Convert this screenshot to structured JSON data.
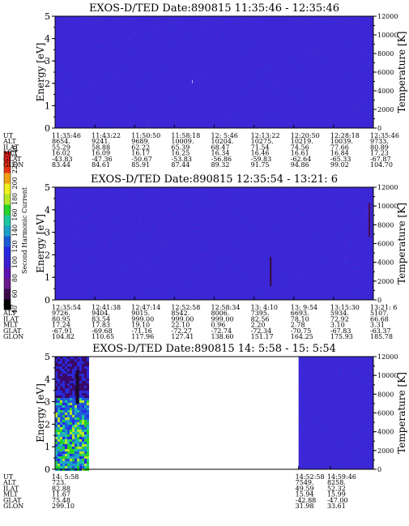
{
  "chart_data": {
    "type": "heatmap",
    "colorbar": {
      "label": "Second Harmonic Current",
      "ticks": [
        "40",
        "60",
        "80",
        "100",
        "120",
        "140",
        "160",
        "180",
        "200",
        "220",
        "240"
      ],
      "colors": [
        "#000000",
        "#3a0a4a",
        "#6a1a8a",
        "#5a14b0",
        "#3820d0",
        "#2828e0",
        "#1e5ad8",
        "#1ea0c8",
        "#1ec8a0",
        "#28d228",
        "#b4e628",
        "#f0f01e",
        "#f0a014",
        "#e63214",
        "#e61e1e"
      ]
    },
    "panels": [
      {
        "title": "EXOS-D/TED   Date:890815  11:35:46 - 12:35:46",
        "ylabel": "Energy [eV]",
        "y2label": "Temperature [K]",
        "ylim": [
          0,
          5
        ],
        "y2lim": [
          0,
          12000
        ],
        "yticks": [
          "0",
          "1",
          "2",
          "3",
          "4",
          "5"
        ],
        "y2ticks": [
          "0",
          "2000",
          "4000",
          "6000",
          "8000",
          "10000",
          "12000"
        ],
        "coverage": [
          [
            0,
            1
          ]
        ],
        "background": "#3b27d6",
        "ephemeris": {
          "labels": [
            "UT",
            "ALT",
            "ILAT",
            "MLT",
            "GLAT",
            "GLON"
          ],
          "columns": [
            {
              "pos": 0.0,
              "values": [
                "11:35:46",
                "8654.",
                "55.29",
                "16.02",
                "-43.83",
                "83.44"
              ]
            },
            {
              "pos": 0.1667,
              "values": [
                "11:43:22",
                "9241.",
                "58.88",
                "16.09",
                "-47.36",
                "84.61"
              ]
            },
            {
              "pos": 0.3333,
              "values": [
                "11:50:50",
                "9689.",
                "62.22",
                "16.17",
                "-50.67",
                "85.91"
              ]
            },
            {
              "pos": 0.5,
              "values": [
                "11:58:18",
                "10009.",
                "65.39",
                "16.25",
                "-53.83",
                "87.44"
              ]
            },
            {
              "pos": 0.6667,
              "values": [
                "12: 5:46",
                "10204.",
                "68.47",
                "16.34",
                "-56.86",
                "89.32"
              ]
            },
            {
              "pos": 0.8333,
              "values": [
                "12:13:22",
                "10275.",
                "71.54",
                "16.46",
                "-59.83",
                "91.75"
              ]
            },
            {
              "pos": 1.0,
              "values": [
                "12:20:50",
                "10219.",
                "74.56",
                "16.61",
                "-62.64",
                "94.86"
              ]
            },
            {
              "pos": 1.1667,
              "values": [
                "12:28:18",
                "10039.",
                "77.66",
                "16.84",
                "-65.33",
                "99.02"
              ]
            },
            {
              "pos": 1.3333,
              "values": [
                "12:35:46",
                "9733.",
                "80.89",
                "17.23",
                "-67.87",
                "104.70"
              ]
            }
          ]
        }
      },
      {
        "title": "EXOS-D/TED   Date:890815  12:35:54 - 13:21: 6",
        "ylabel": "Energy [eV]",
        "y2label": "Temperature [K]",
        "ylim": [
          0,
          5
        ],
        "y2lim": [
          0,
          12000
        ],
        "yticks": [
          "0",
          "1",
          "2",
          "3",
          "4",
          "5"
        ],
        "y2ticks": [
          "0",
          "2000",
          "4000",
          "6000",
          "8000",
          "10000",
          "12000"
        ],
        "coverage": [
          [
            0,
            1
          ]
        ],
        "background": "#3b27d6",
        "ephemeris": {
          "labels": [
            "UT",
            "ALT",
            "ILAT",
            "MLT",
            "GLAT",
            "GLON"
          ],
          "columns": [
            {
              "pos": 0.0,
              "values": [
                "12:35:54",
                "9726.",
                "80.95",
                "17.24",
                "-67.91",
                "104.82"
              ]
            },
            {
              "pos": 0.1667,
              "values": [
                "12:41:38",
                "9404.",
                "83.54",
                "17.83",
                "-69.68",
                "110.65"
              ]
            },
            {
              "pos": 0.3333,
              "values": [
                "12:47:14",
                "9015.",
                "999.00",
                "19.10",
                "-71.16",
                "117.96"
              ]
            },
            {
              "pos": 0.5,
              "values": [
                "12:52:58",
                "8542.",
                "999.00",
                "22.10",
                "-72.27",
                "127.41"
              ]
            },
            {
              "pos": 0.6667,
              "values": [
                "12:58:34",
                "8006.",
                "999.00",
                "0.96",
                "-72.74",
                "138.60"
              ]
            },
            {
              "pos": 0.8333,
              "values": [
                "13: 4:10",
                "7395.",
                "82.56",
                "2.20",
                "-72.34",
                "151.17"
              ]
            },
            {
              "pos": 1.0,
              "values": [
                "13: 9:54",
                "6693.",
                "78.10",
                "2.78",
                "-70.75",
                "164.25"
              ]
            },
            {
              "pos": 1.1667,
              "values": [
                "13:15:30",
                "5934.",
                "72.92",
                "3.10",
                "-67.83",
                "175.93"
              ]
            },
            {
              "pos": 1.3333,
              "values": [
                "13:21: 6",
                "5107.",
                "66.68",
                "3.31",
                "-63.37",
                "185.78"
              ]
            }
          ]
        }
      },
      {
        "title": "EXOS-D/TED   Date:890815  14: 5:58 - 15: 5:54",
        "ylabel": "Energy [eV]",
        "y2label": "Temperature [K]",
        "ylim": [
          0,
          5
        ],
        "y2lim": [
          0,
          12000
        ],
        "yticks": [
          "0",
          "1",
          "2",
          "3",
          "4",
          "5"
        ],
        "y2ticks": [
          "0",
          "2000",
          "4000",
          "6000",
          "8000",
          "10000",
          "12000"
        ],
        "coverage": [
          [
            0,
            0.1
          ],
          [
            0.765,
            1
          ]
        ],
        "background": "#3b27d6",
        "ephemeris": {
          "labels": [
            "UT",
            "ALT",
            "ILAT",
            "MLT",
            "GLAT",
            "GLON"
          ],
          "columns": [
            {
              "pos": 0.0,
              "values": [
                "14: 5:58",
                "723.",
                "82.88",
                "11.67",
                "75.48",
                "299.10"
              ]
            },
            {
              "pos": 0.765,
              "values": [
                "14:52:58",
                "7549.",
                "49.59",
                "15.94",
                "-42.88",
                "31.98"
              ]
            },
            {
              "pos": 0.865,
              "values": [
                "14:59:46",
                "8258.",
                "52.32",
                "15.99",
                "-47.00",
                "33.61"
              ]
            }
          ]
        }
      }
    ]
  }
}
